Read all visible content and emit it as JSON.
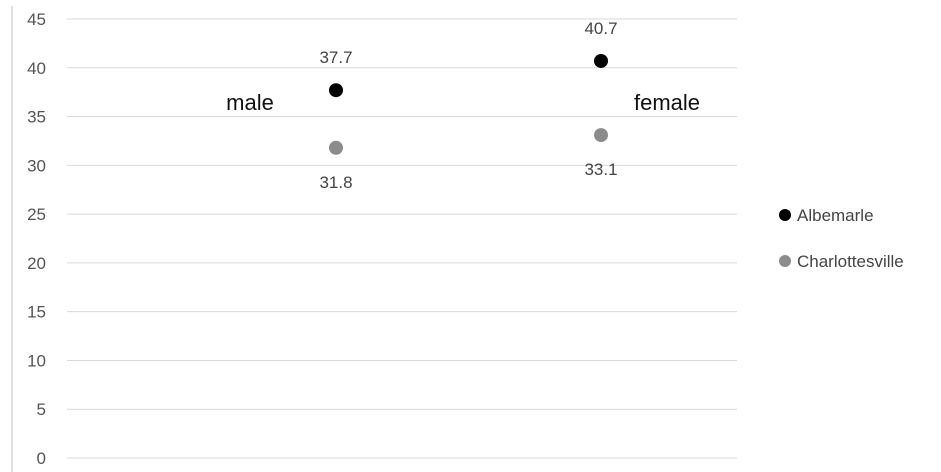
{
  "chart_data": {
    "type": "scatter",
    "title": "",
    "xlabel": "",
    "ylabel": "",
    "categories": [
      "male",
      "female"
    ],
    "ylim": [
      0,
      45
    ],
    "yticks": [
      0,
      5,
      10,
      15,
      20,
      25,
      30,
      35,
      40,
      45
    ],
    "grid": true,
    "legend_position": "right",
    "series": [
      {
        "name": "Albemarle",
        "color": "#000000",
        "values": [
          37.7,
          40.7
        ],
        "labels": [
          "37.7",
          "40.7"
        ],
        "label_placement": "above"
      },
      {
        "name": "Charlottesville",
        "color": "#8c8c8c",
        "values": [
          31.8,
          33.1
        ],
        "labels": [
          "31.8",
          "33.1"
        ],
        "label_placement": "below"
      }
    ]
  }
}
